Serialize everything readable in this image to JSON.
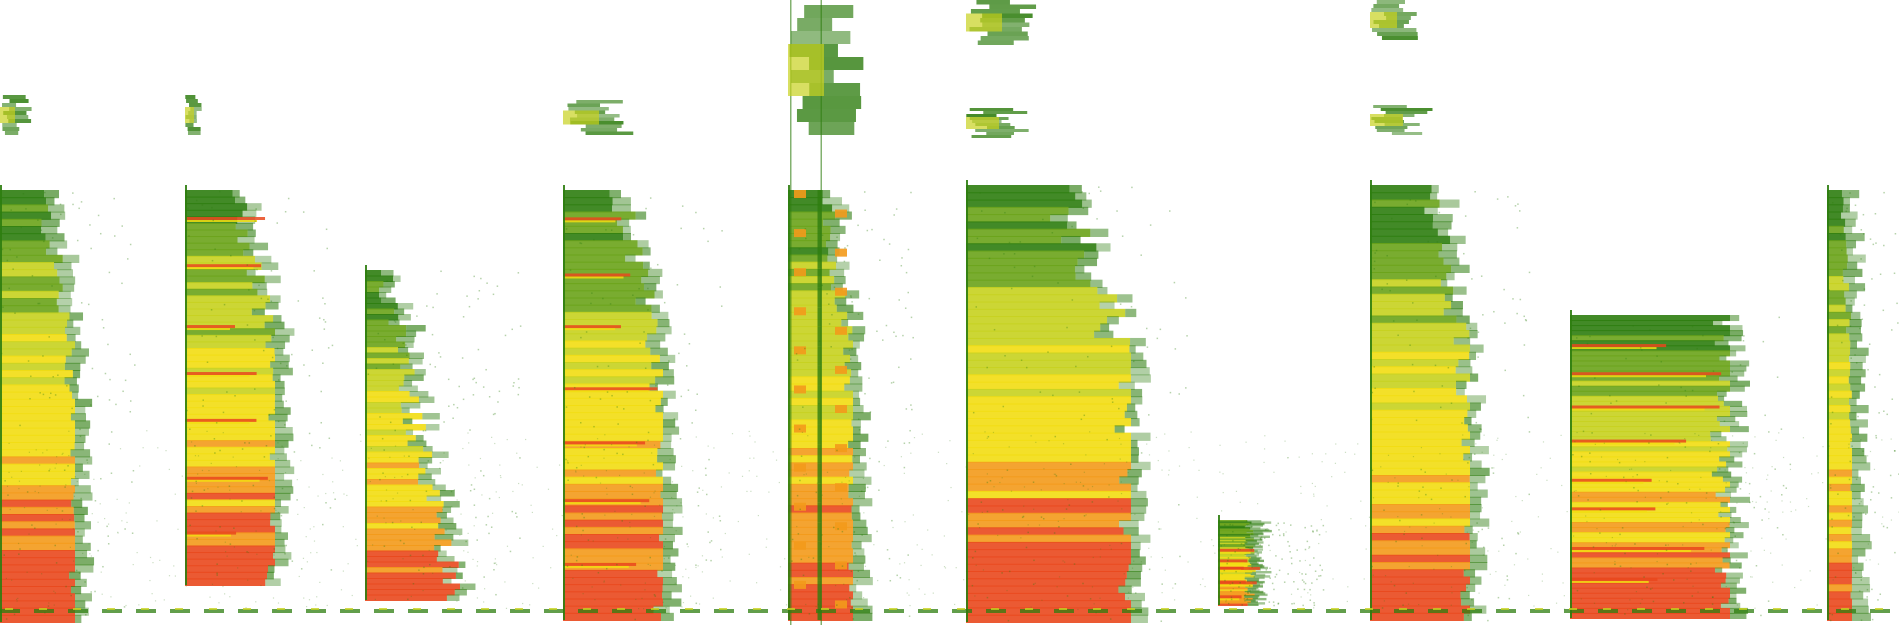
{
  "colors": {
    "background": "#ffffff",
    "low": "#2e7d0f",
    "mid_low": "#6aa31a",
    "mid": "#c7d21f",
    "high": "#f2dd12",
    "peak": "#f39a1b",
    "max": "#e9481d"
  },
  "spectrogram": {
    "segments": [
      {
        "id": "segment-1",
        "kind": "broadband-burst",
        "low_energy_intensity": 0.95
      },
      {
        "id": "segment-2",
        "kind": "harmonic-tones",
        "low_energy_intensity": 0.9
      },
      {
        "id": "segment-3",
        "kind": "descending-chirp",
        "low_energy_intensity": 0.92
      },
      {
        "id": "segment-4",
        "kind": "dense-harmonic-stack",
        "low_energy_intensity": 0.96
      },
      {
        "id": "segment-5",
        "kind": "zigzag-modulation",
        "low_energy_intensity": 0.9
      },
      {
        "id": "segment-6",
        "kind": "broadband-burst",
        "low_energy_intensity": 0.98
      },
      {
        "id": "segment-7",
        "kind": "short-low-click",
        "low_energy_intensity": 0.75
      },
      {
        "id": "segment-8",
        "kind": "noisy-burst",
        "low_energy_intensity": 0.88
      },
      {
        "id": "segment-9",
        "kind": "tonal-bars-block",
        "low_energy_intensity": 0.94
      },
      {
        "id": "segment-10",
        "kind": "narrow-edge-burst",
        "low_energy_intensity": 0.85
      }
    ]
  }
}
